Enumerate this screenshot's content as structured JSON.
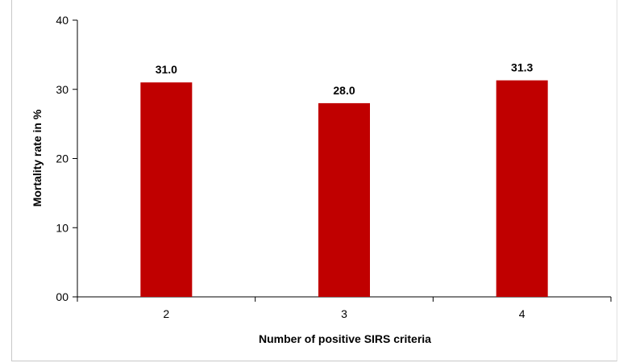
{
  "chart_data": {
    "type": "bar",
    "title": "",
    "xlabel": "Number of positive SIRS criteria",
    "ylabel": "Mortality rate in %",
    "categories": [
      "2",
      "3",
      "4"
    ],
    "values": [
      31.0,
      28.0,
      31.3
    ],
    "data_labels": [
      "31.0",
      "28.0",
      "31.3"
    ],
    "ylim": [
      0,
      40
    ],
    "y_ticks": [
      0,
      10,
      20,
      30,
      40
    ],
    "y_tick_labels": [
      "00",
      "10",
      "20",
      "30",
      "40"
    ],
    "bar_color": "#c00000",
    "grid": false,
    "legend": "none"
  }
}
